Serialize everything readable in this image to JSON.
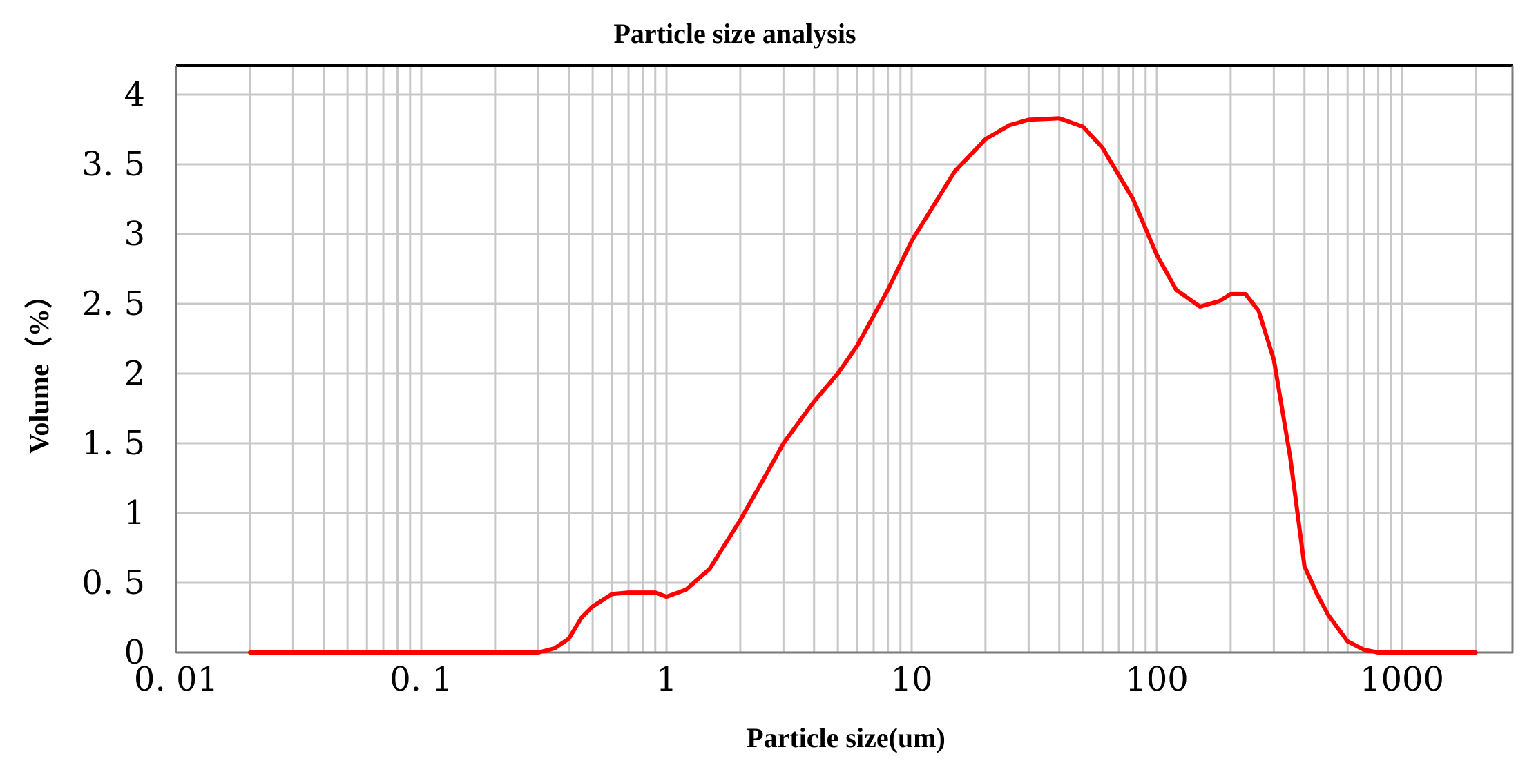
{
  "chart_data": {
    "type": "line",
    "title": "Particle size analysis",
    "xlabel": "Particle size(um)",
    "ylabel": "Volume（%）",
    "x_scale": "log",
    "xlim": [
      0.01,
      5000
    ],
    "ylim": [
      0,
      4.2
    ],
    "x_tick_labels": [
      "0. 01",
      "0. 1",
      "1",
      "10",
      "100",
      "1000"
    ],
    "x_tick_values": [
      0.01,
      0.1,
      1,
      10,
      100,
      1000
    ],
    "y_tick_labels": [
      "0",
      "0. 5",
      "1",
      "1. 5",
      "2",
      "2. 5",
      "3",
      "3. 5",
      "4"
    ],
    "y_tick_values": [
      0,
      0.5,
      1,
      1.5,
      2,
      2.5,
      3,
      3.5,
      4
    ],
    "grid": true,
    "line_color": "#ff0000",
    "series": [
      {
        "x": [
          0.02,
          0.05,
          0.1,
          0.2,
          0.3,
          0.35,
          0.4,
          0.45,
          0.5,
          0.6,
          0.7,
          0.8,
          0.9,
          1.0,
          1.2,
          1.5,
          2.0,
          2.5,
          3.0,
          4.0,
          5.0,
          6.0,
          8.0,
          10.0,
          15.0,
          20.0,
          25.0,
          30.0,
          40.0,
          50.0,
          60.0,
          80.0,
          100.0,
          120.0,
          150.0,
          180.0,
          200.0,
          230.0,
          260.0,
          300.0,
          350.0,
          400.0,
          450.0,
          500.0,
          600.0,
          700.0,
          800.0,
          1000.0,
          1500.0,
          2000.0
        ],
        "y": [
          0,
          0,
          0,
          0,
          0,
          0.03,
          0.1,
          0.25,
          0.33,
          0.42,
          0.43,
          0.43,
          0.43,
          0.4,
          0.45,
          0.6,
          0.95,
          1.25,
          1.5,
          1.8,
          2.0,
          2.2,
          2.6,
          2.95,
          3.45,
          3.68,
          3.78,
          3.82,
          3.83,
          3.77,
          3.62,
          3.25,
          2.85,
          2.6,
          2.48,
          2.52,
          2.57,
          2.57,
          2.45,
          2.1,
          1.4,
          0.62,
          0.42,
          0.27,
          0.08,
          0.02,
          0,
          0,
          0,
          0
        ]
      }
    ]
  }
}
